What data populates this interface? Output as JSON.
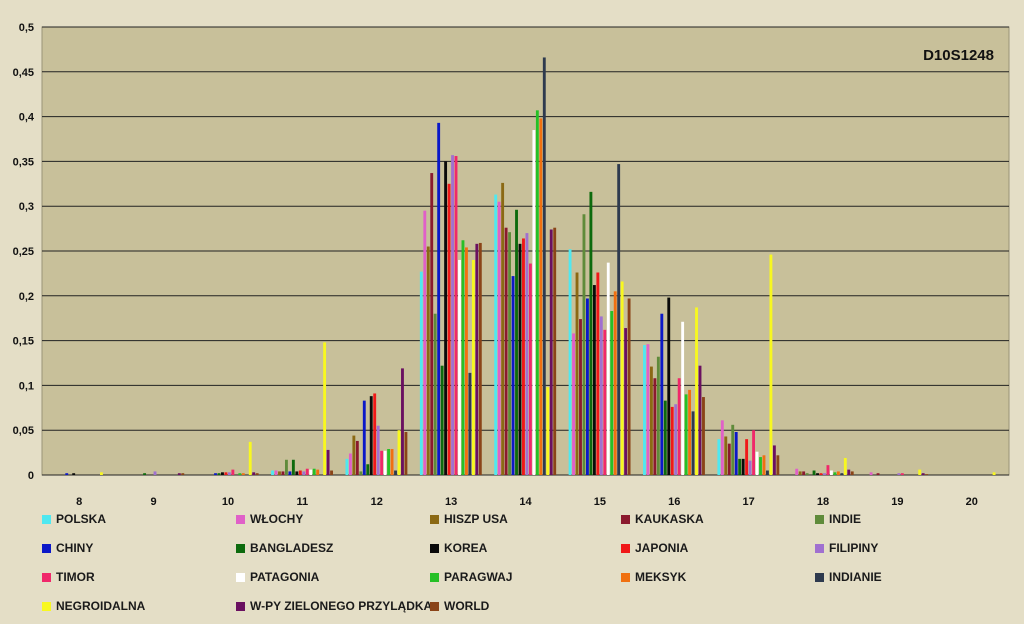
{
  "chart_data": {
    "type": "bar",
    "title": "D10S1248",
    "xlabel": "",
    "ylabel": "",
    "ylim": [
      0,
      0.5
    ],
    "yticks": [
      "0",
      "0,05",
      "0,1",
      "0,15",
      "0,2",
      "0,25",
      "0,3",
      "0,35",
      "0,4",
      "0,45",
      "0,5"
    ],
    "categories": [
      "8",
      "9",
      "10",
      "11",
      "12",
      "13",
      "14",
      "15",
      "16",
      "17",
      "18",
      "19",
      "20"
    ],
    "grid": "horizontal",
    "legend_position": "bottom",
    "series": [
      {
        "name": "POLSKA",
        "color": "#4fe8f0",
        "values": [
          0,
          0,
          0,
          0.005,
          0.018,
          0.227,
          0.313,
          0.252,
          0.145,
          0.04,
          0,
          0,
          0
        ]
      },
      {
        "name": "WŁOCHY",
        "color": "#e060c8",
        "values": [
          0,
          0,
          0,
          0.005,
          0.024,
          0.295,
          0.305,
          0.158,
          0.146,
          0.061,
          0.007,
          0.003,
          0
        ]
      },
      {
        "name": "HISZP USA",
        "color": "#8b6914",
        "values": [
          0,
          0,
          0,
          0.004,
          0.044,
          0.255,
          0.326,
          0.226,
          0.121,
          0.043,
          0.004,
          0,
          0
        ]
      },
      {
        "name": "KAUKASKA",
        "color": "#8b1a2e",
        "values": [
          0,
          0,
          0,
          0.004,
          0.038,
          0.337,
          0.276,
          0.174,
          0.108,
          0.035,
          0.004,
          0.002,
          0
        ]
      },
      {
        "name": "INDIE",
        "color": "#5f8b3a",
        "values": [
          0,
          0,
          0,
          0.017,
          0.004,
          0.18,
          0.271,
          0.291,
          0.132,
          0.056,
          0.002,
          0,
          0
        ]
      },
      {
        "name": "CHINY",
        "color": "#0b18c8",
        "values": [
          0.002,
          0,
          0.002,
          0.004,
          0.083,
          0.393,
          0.222,
          0.197,
          0.18,
          0.048,
          0,
          0,
          0
        ]
      },
      {
        "name": "BANGLADESZ",
        "color": "#0d6a0d",
        "values": [
          0,
          0.002,
          0.002,
          0.017,
          0.012,
          0.122,
          0.296,
          0.316,
          0.083,
          0.018,
          0.005,
          0,
          0
        ]
      },
      {
        "name": "KOREA",
        "color": "#0a0a0a",
        "values": [
          0.002,
          0,
          0.003,
          0.004,
          0.088,
          0.35,
          0.258,
          0.212,
          0.198,
          0.018,
          0.002,
          0,
          0
        ]
      },
      {
        "name": "JAPONIA",
        "color": "#f01818",
        "values": [
          0,
          0,
          0.003,
          0.005,
          0.091,
          0.325,
          0.264,
          0.226,
          0.076,
          0.04,
          0.002,
          0,
          0
        ]
      },
      {
        "name": "FILIPINY",
        "color": "#a070d0",
        "values": [
          0,
          0.004,
          0.003,
          0.004,
          0.055,
          0.357,
          0.27,
          0.177,
          0.079,
          0.016,
          0.002,
          0.002,
          0
        ]
      },
      {
        "name": "TIMOR",
        "color": "#f0286a",
        "values": [
          0,
          0,
          0.006,
          0.007,
          0.027,
          0.356,
          0.236,
          0.162,
          0.108,
          0.05,
          0.011,
          0.002,
          0
        ]
      },
      {
        "name": "PATAGONIA",
        "color": "#ffffff",
        "values": [
          0,
          0,
          0,
          0.006,
          0.027,
          0.24,
          0.385,
          0.237,
          0.171,
          0.026,
          0.005,
          0,
          0
        ]
      },
      {
        "name": "PARAGWAJ",
        "color": "#26c026",
        "values": [
          0,
          0,
          0.002,
          0.007,
          0.029,
          0.262,
          0.407,
          0.183,
          0.09,
          0.02,
          0.003,
          0,
          0
        ]
      },
      {
        "name": "MEKSYK",
        "color": "#f07010",
        "values": [
          0,
          0,
          0.002,
          0.006,
          0.029,
          0.254,
          0.398,
          0.205,
          0.095,
          0.022,
          0.004,
          0,
          0
        ]
      },
      {
        "name": "INDIANIE",
        "color": "#2e3a4e",
        "values": [
          0,
          0,
          0,
          0,
          0.005,
          0.114,
          0.466,
          0.347,
          0.071,
          0.005,
          0.002,
          0,
          0
        ]
      },
      {
        "name": "NEGROIDALNA",
        "color": "#f8f820",
        "values": [
          0.003,
          0,
          0.037,
          0.148,
          0.05,
          0.24,
          0.098,
          0.216,
          0.187,
          0.246,
          0.019,
          0.006,
          0.003
        ]
      },
      {
        "name": "W-PY ZIELONEGO PRZYLĄDKA",
        "color": "#6a1060",
        "values": [
          0,
          0.002,
          0.003,
          0.028,
          0.119,
          0.258,
          0.274,
          0.164,
          0.122,
          0.033,
          0.006,
          0.002,
          0
        ]
      },
      {
        "name": "WORLD",
        "color": "#8a4418",
        "values": [
          0,
          0.002,
          0.002,
          0.005,
          0.048,
          0.259,
          0.276,
          0.197,
          0.087,
          0.022,
          0.004,
          0.001,
          0
        ]
      }
    ]
  }
}
